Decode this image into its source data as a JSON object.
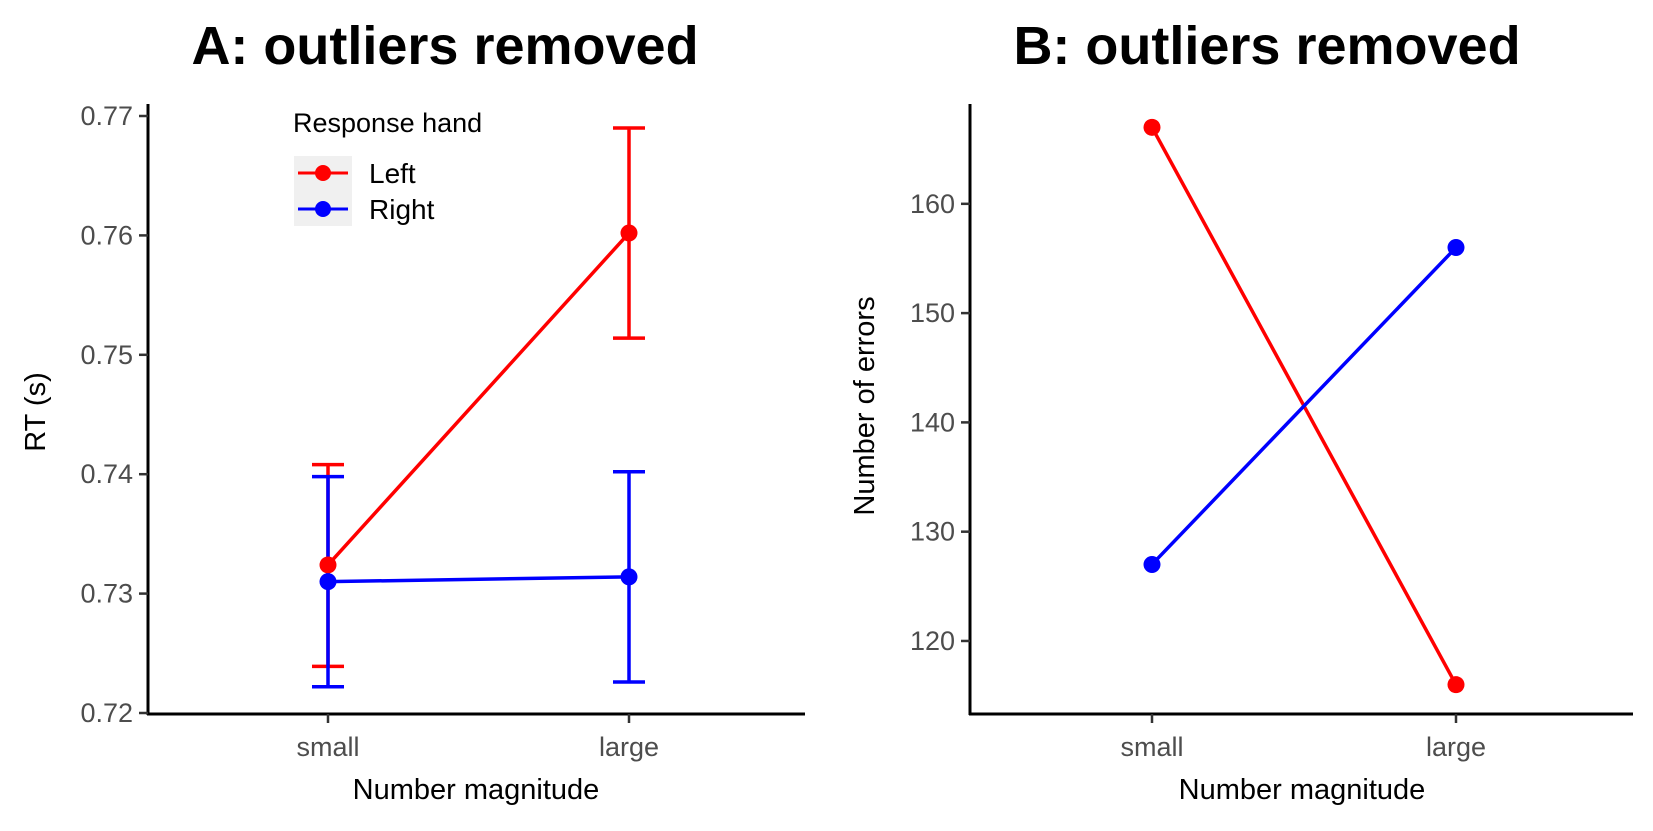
{
  "chart_data": [
    {
      "type": "line",
      "title": "A: outliers removed",
      "xlabel": "Number magnitude",
      "ylabel": "RT (s)",
      "categories": [
        "small",
        "large"
      ],
      "ylim": [
        0.72,
        0.77
      ],
      "yticks": [
        "0.72",
        "0.73",
        "0.74",
        "0.75",
        "0.76",
        "0.77"
      ],
      "grid": false,
      "legend": {
        "title": "Response hand",
        "placement": "top-left",
        "entries": [
          "Left",
          "Right"
        ]
      },
      "error_bars": true,
      "series": [
        {
          "name": "Left",
          "color": "#ff0000",
          "values": [
            0.7324,
            0.7602
          ],
          "lower": [
            0.7239,
            0.7514
          ],
          "upper": [
            0.7408,
            0.769
          ]
        },
        {
          "name": "Right",
          "color": "#0000ff",
          "values": [
            0.731,
            0.7314
          ],
          "lower": [
            0.7222,
            0.7226
          ],
          "upper": [
            0.7398,
            0.7402
          ]
        }
      ]
    },
    {
      "type": "line",
      "title": "B: outliers removed",
      "xlabel": "Number magnitude",
      "ylabel": "Number of errors",
      "categories": [
        "small",
        "large"
      ],
      "ylim": [
        113.5,
        169.5
      ],
      "yticks": [
        "120",
        "130",
        "140",
        "150",
        "160"
      ],
      "grid": false,
      "error_bars": false,
      "series": [
        {
          "name": "Left",
          "color": "#ff0000",
          "values": [
            167,
            116
          ]
        },
        {
          "name": "Right",
          "color": "#0000ff",
          "values": [
            127,
            156
          ]
        }
      ]
    }
  ]
}
